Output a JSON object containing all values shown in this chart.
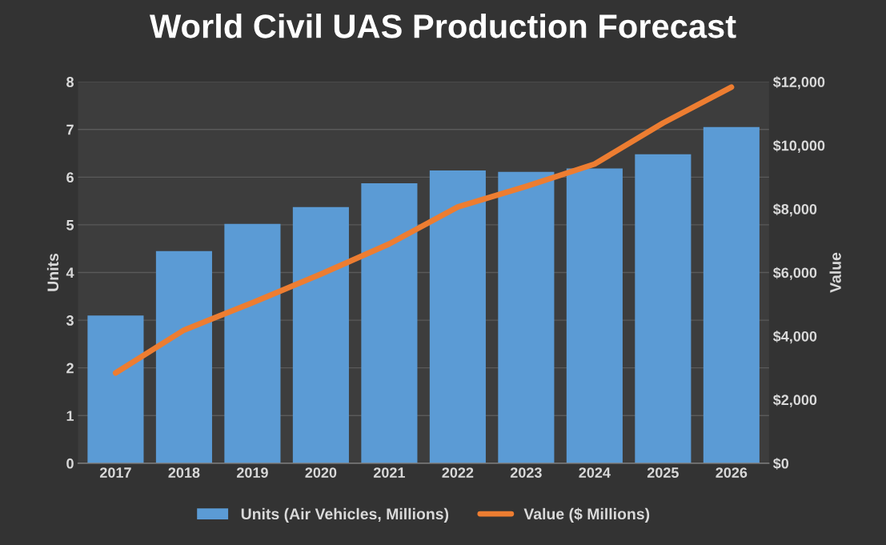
{
  "chart_data": {
    "type": "bar",
    "title": "World Civil UAS Production Forecast",
    "ylabel": "Units",
    "y2label": "Value",
    "categories": [
      "2017",
      "2018",
      "2019",
      "2020",
      "2021",
      "2022",
      "2023",
      "2024",
      "2025",
      "2026"
    ],
    "series": [
      {
        "name": "Units (Air Vehicles, Millions)",
        "color": "#5b9bd5",
        "values": [
          3.1,
          4.45,
          5.02,
          5.37,
          5.87,
          6.14,
          6.11,
          6.18,
          6.48,
          7.05
        ]
      },
      {
        "name": "Value ($ Millions)",
        "type": "line",
        "axis": "y2",
        "color": "#ed7d31",
        "values": [
          2840,
          4190,
          5050,
          5950,
          6900,
          8060,
          8710,
          9410,
          10700,
          11830
        ]
      }
    ],
    "ylim": [
      0,
      8
    ],
    "yticks": [
      0,
      1,
      2,
      3,
      4,
      5,
      6,
      7,
      8
    ],
    "y2lim": [
      0,
      12000
    ],
    "y2ticks": [
      {
        "value": 0,
        "label": "$0"
      },
      {
        "value": 2000,
        "label": "$2,000"
      },
      {
        "value": 4000,
        "label": "$4,000"
      },
      {
        "value": 6000,
        "label": "$6,000"
      },
      {
        "value": 8000,
        "label": "$8,000"
      },
      {
        "value": 10000,
        "label": "$10,000"
      },
      {
        "value": 12000,
        "label": "$12,000"
      }
    ],
    "grid": "y",
    "legend": "bottom",
    "marker": "none",
    "line_style": "solid"
  }
}
